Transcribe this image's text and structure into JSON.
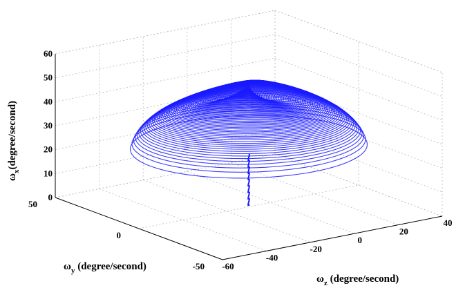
{
  "chart_data": {
    "type": "3d-line",
    "grid": true,
    "series_color": "#1a1aff",
    "axes": {
      "x": {
        "label_symbol": "ω",
        "label_sub": "z",
        "label_text": " (degree/second)",
        "ticks": [
          -60,
          -40,
          -20,
          0,
          20,
          40
        ],
        "range": [
          -60,
          40
        ]
      },
      "y": {
        "label_symbol": "ω",
        "label_sub": "y",
        "label_text": " (degree/second)",
        "ticks": [
          -50,
          0,
          50
        ],
        "range": [
          -50,
          50
        ]
      },
      "z": {
        "label_symbol": "ω",
        "label_sub": "x",
        "label_text": "(degree/second)",
        "ticks": [
          0,
          10,
          20,
          30,
          40,
          50,
          60
        ],
        "range": [
          0,
          60
        ]
      }
    },
    "trajectory": {
      "description_shape": "dome",
      "center_z": -10,
      "center_y": 0,
      "radius_z": 45,
      "radius_y": 40,
      "peak_x": 48,
      "base_x": 22,
      "stem_bottom_x": 0
    }
  }
}
